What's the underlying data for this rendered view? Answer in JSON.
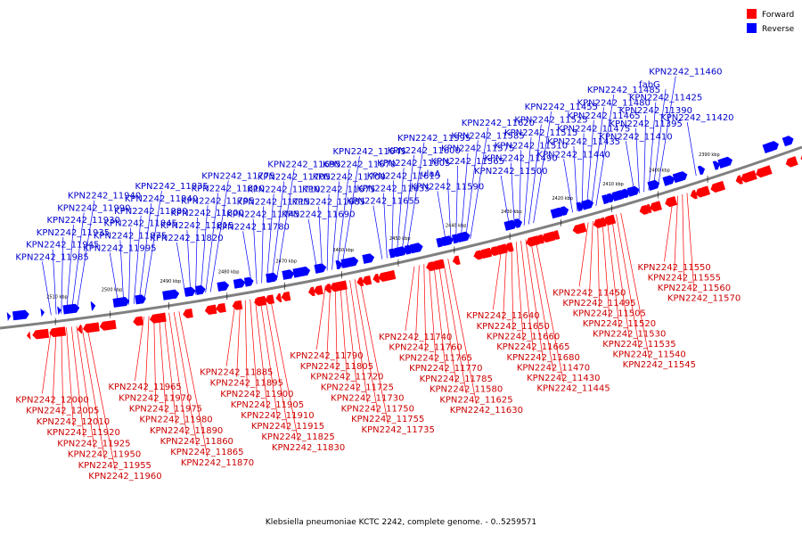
{
  "title": "Klebsiella pneumoniae KCTC 2242, complete genome. - 0..5259571",
  "legend": [
    {
      "label": "Forward",
      "color": "#ff0000"
    },
    {
      "label": "Reverse",
      "color": "#0000ff"
    }
  ],
  "colors": {
    "forward": "#ff0000",
    "reverse": "#0000ff",
    "label_forward": "#cc0000",
    "label_reverse": "#0000cc",
    "backbone": "#808080"
  },
  "ticks": [
    "2510 kbp",
    "2500 kbp",
    "2490 kbp",
    "2480 kbp",
    "2470 kbp",
    "2460 kbp",
    "2450 kbp",
    "2440 kbp",
    "2430 kbp",
    "2420 kbp",
    "2410 kbp",
    "2400 kbp",
    "2390 kbp"
  ],
  "reverse_labels": [
    "KPN2242_11985",
    "KPN2242_11945",
    "KPN2242_11935",
    "KPN2242_11930",
    "KPN2242_11990",
    "KPN2242_11940",
    "KPN2242_11995",
    "KPN2242_11875",
    "KPN2242_11845",
    "KPN2242_11880",
    "KPN2242_11840",
    "KPN2242_11835",
    "KPN2242_11820",
    "KPN2242_11815",
    "KPN2242_11800",
    "KPN2242_11795",
    "KPN2242_11810",
    "KPN2242_11775",
    "KPN2242_11780",
    "KPN2242_11745",
    "KPN2242_11715",
    "KPN2242_11710",
    "KPN2242_11705",
    "KPN2242_11695",
    "KPN2242_11690",
    "KPN2242_11685",
    "KPN2242_11675",
    "KPN2242_11700",
    "KPN2242_11670",
    "KPN2242_11645",
    "KPN2242_11655",
    "KPN2242_11635",
    "KPN2242_11615",
    "KPN2242_11605",
    "KPN2242_11600",
    "KPN2242_11595",
    "KPN2242_11590",
    "ulaA",
    "KPN2242_11565",
    "KPN2242_11575",
    "KPN2242_11585",
    "KPN2242_11620",
    "KPN2242_11500",
    "KPN2242_11490",
    "KPN2242_11510",
    "KPN2242_11515",
    "KPN2242_11525",
    "KPN2242_11455",
    "KPN2242_11440",
    "KPN2242_11435",
    "KPN2242_11475",
    "KPN2242_11465",
    "KPN2242_11480",
    "KPN2242_11485",
    "KPN2242_11410",
    "KPN2242_11395",
    "KPN2242_11390",
    "KPN2242_11425",
    "fabG",
    "KPN2242_11460",
    "KPN2242_11420"
  ],
  "forward_labels": [
    "KPN2242_12000",
    "KPN2242_12005",
    "KPN2242_12010",
    "KPN2242_11920",
    "KPN2242_11925",
    "KPN2242_11950",
    "KPN2242_11955",
    "KPN2242_11960",
    "KPN2242_11965",
    "KPN2242_11970",
    "KPN2242_11975",
    "KPN2242_11980",
    "KPN2242_11890",
    "KPN2242_11860",
    "KPN2242_11865",
    "KPN2242_11870",
    "KPN2242_11885",
    "KPN2242_11895",
    "KPN2242_11900",
    "KPN2242_11905",
    "KPN2242_11910",
    "KPN2242_11915",
    "KPN2242_11825",
    "KPN2242_11830",
    "KPN2242_11790",
    "KPN2242_11805",
    "KPN2242_11720",
    "KPN2242_11725",
    "KPN2242_11730",
    "KPN2242_11750",
    "KPN2242_11755",
    "KPN2242_11735",
    "KPN2242_11740",
    "KPN2242_11760",
    "KPN2242_11765",
    "KPN2242_11770",
    "KPN2242_11785",
    "KPN2242_11580",
    "KPN2242_11625",
    "KPN2242_11630",
    "KPN2242_11640",
    "KPN2242_11650",
    "KPN2242_11660",
    "KPN2242_11665",
    "KPN2242_11680",
    "KPN2242_11470",
    "KPN2242_11430",
    "KPN2242_11445",
    "KPN2242_11450",
    "KPN2242_11495",
    "KPN2242_11505",
    "KPN2242_11520",
    "KPN2242_11530",
    "KPN2242_11535",
    "KPN2242_11540",
    "KPN2242_11545",
    "KPN2242_11550",
    "KPN2242_11555",
    "KPN2242_11560",
    "KPN2242_11570"
  ]
}
